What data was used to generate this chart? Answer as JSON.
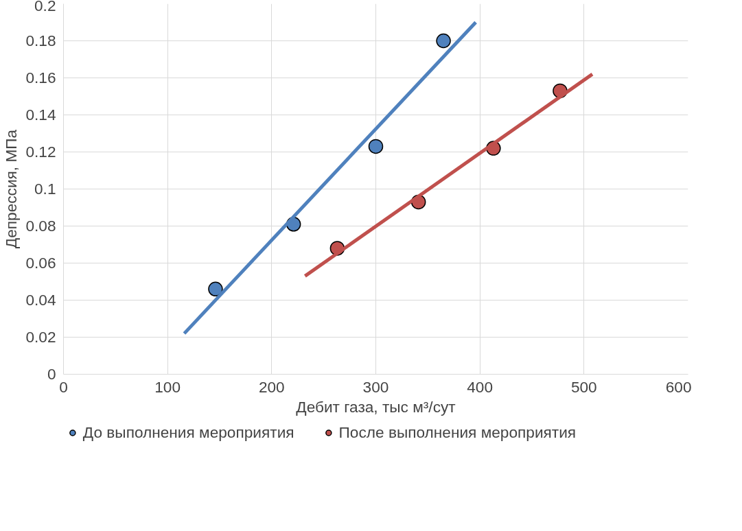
{
  "chart_data": {
    "type": "scatter",
    "xlabel": "Дебит газа, тыс м³/сут",
    "ylabel": "Депрессия, МПа",
    "xlim": [
      0,
      600
    ],
    "xticks": [
      0,
      100,
      200,
      300,
      400,
      500,
      600
    ],
    "ylim": [
      0,
      0.2
    ],
    "yticks": [
      0,
      0.02,
      0.04,
      0.06,
      0.08,
      0.1,
      0.12,
      0.14,
      0.16,
      0.18,
      0.2
    ],
    "grid": true,
    "legend": "bottom",
    "marker": "circle",
    "series": [
      {
        "name": "До выполнения мероприятия",
        "color": "#4f81bd",
        "x": [
          146,
          221,
          300,
          365
        ],
        "values": [
          0.046,
          0.081,
          0.123,
          0.18
        ]
      },
      {
        "name": "После выполнения мероприятия",
        "color": "#c0504d",
        "x": [
          263,
          341,
          413,
          477
        ],
        "values": [
          0.068,
          0.093,
          0.122,
          0.153
        ]
      },
      {
        "color": "#4f81bd",
        "type": "line",
        "marker": "none",
        "x": [
          116,
          396
        ],
        "values": [
          0.022,
          0.19
        ]
      },
      {
        "color": "#c0504d",
        "type": "line",
        "marker": "none",
        "x": [
          232,
          508
        ],
        "values": [
          0.053,
          0.162
        ]
      }
    ]
  }
}
